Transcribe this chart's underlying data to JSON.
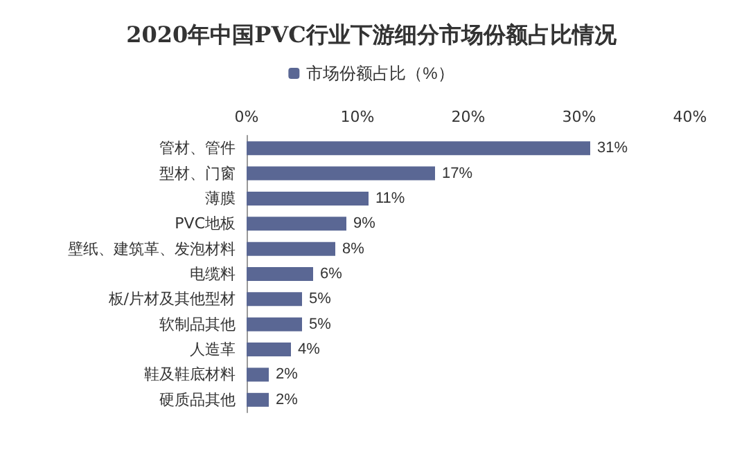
{
  "chart_data": {
    "type": "bar",
    "orientation": "horizontal",
    "title": "2020年中国PVC行业下游细分市场份额占比情况",
    "categories": [
      "管材、管件",
      "型材、门窗",
      "薄膜",
      "PVC地板",
      "壁纸、建筑革、发泡材料",
      "电缆料",
      "板/片材及其他型材",
      "软制品其他",
      "人造革",
      "鞋及鞋底材料",
      "硬质品其他"
    ],
    "series": [
      {
        "name": "市场份额占比（%）",
        "color": "#5a6794",
        "values": [
          31,
          17,
          11,
          9,
          8,
          6,
          5,
          5,
          4,
          2,
          2
        ],
        "value_labels": [
          "31%",
          "17%",
          "11%",
          "9%",
          "8%",
          "6%",
          "5%",
          "5%",
          "4%",
          "2%",
          "2%"
        ]
      }
    ],
    "xlim": [
      0,
      40
    ],
    "xticks": [
      {
        "value": 0,
        "label": "0%"
      },
      {
        "value": 10,
        "label": "10%"
      },
      {
        "value": 20,
        "label": "20%"
      },
      {
        "value": 30,
        "label": "30%"
      },
      {
        "value": 40,
        "label": "40%"
      }
    ],
    "grid": false,
    "legend": "top"
  }
}
